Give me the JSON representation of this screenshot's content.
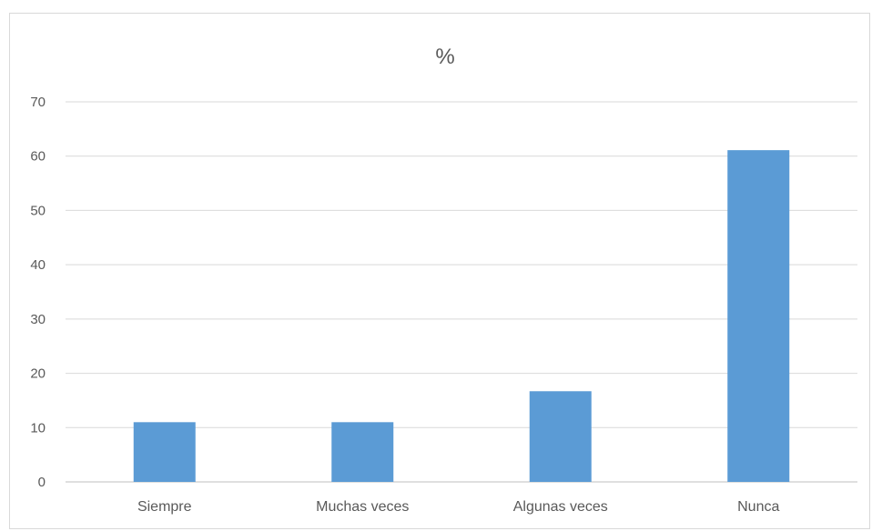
{
  "chart_data": {
    "type": "bar",
    "title": "%",
    "categories": [
      "Siempre",
      "Muchas veces",
      "Algunas veces",
      "Nunca"
    ],
    "values": [
      11,
      11,
      16.7,
      61.1
    ],
    "ylim": [
      0,
      70
    ],
    "yticks": [
      0,
      10,
      20,
      30,
      40,
      50,
      60,
      70
    ],
    "grid": true,
    "bar_color": "#5b9bd5"
  }
}
